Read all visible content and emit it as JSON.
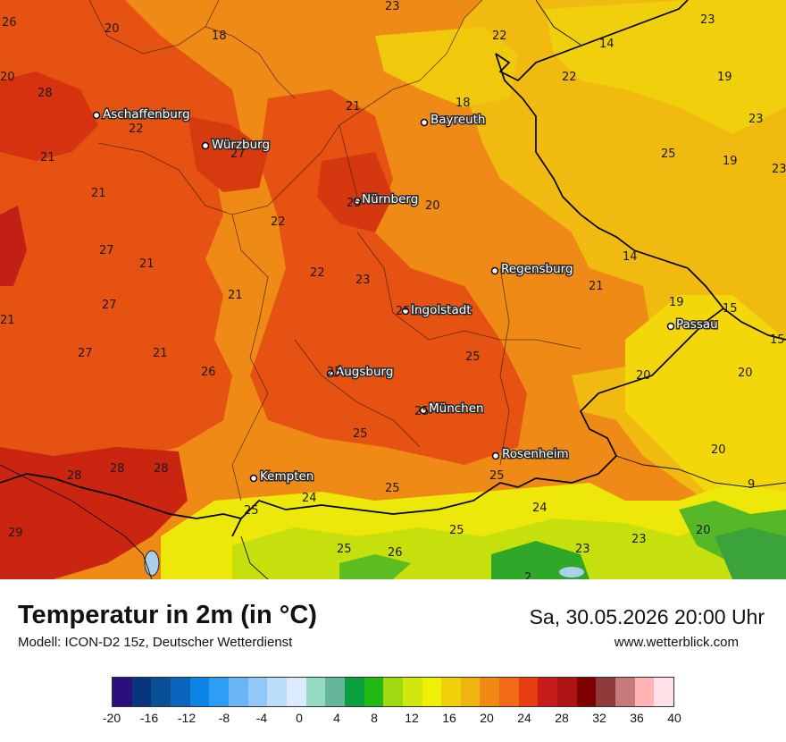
{
  "header": {
    "title": "Temperatur in 2m (in °C)",
    "model": "Modell: ICON-D2 15z, Deutscher Wetterdienst",
    "datetime": "Sa, 30.05.2026 20:00 Uhr",
    "website": "www.wetterblick.com"
  },
  "cities": [
    {
      "name": "Aschaffenburg",
      "marker": "dot"
    },
    {
      "name": "Würzburg",
      "marker": "dot"
    },
    {
      "name": "Bayreuth",
      "marker": "dot"
    },
    {
      "name": "Nürnberg",
      "marker": "dot"
    },
    {
      "name": "Regensburg",
      "marker": "dot"
    },
    {
      "name": "Ingolstadt",
      "marker": "dot"
    },
    {
      "name": "Passau",
      "marker": "dot"
    },
    {
      "name": "Augsburg",
      "marker": "dot"
    },
    {
      "name": "München",
      "marker": "dot"
    },
    {
      "name": "Rosenheim",
      "marker": "dot"
    },
    {
      "name": "Kempten",
      "marker": "dot"
    }
  ],
  "value_labels": [
    "26",
    "20",
    "18",
    "23",
    "22",
    "14",
    "23",
    "20",
    "28",
    "22",
    "22",
    "19",
    "21",
    "18",
    "23",
    "19",
    "21",
    "27",
    "25",
    "23",
    "21",
    "25",
    "20",
    "22",
    "27",
    "21",
    "22",
    "23",
    "14",
    "21",
    "21",
    "27",
    "25",
    "19",
    "15",
    "21",
    "15",
    "27",
    "21",
    "25",
    "26",
    "25",
    "20",
    "20",
    "25",
    "25",
    "25",
    "20",
    "28",
    "28",
    "28",
    "25",
    "9",
    "24",
    "25",
    "24",
    "25",
    "20",
    "29",
    "25",
    "26",
    "23",
    "23",
    "2"
  ],
  "legend": {
    "colors": [
      "#2a0f7e",
      "#07367f",
      "#0b4f97",
      "#0a66bc",
      "#0b84e6",
      "#2e9ef5",
      "#6bb5f5",
      "#91c8f8",
      "#bcdcfb",
      "#dbeafd",
      "#95dbc2",
      "#66b799",
      "#0b9f3d",
      "#21ba14",
      "#9fd910",
      "#d0e80c",
      "#eef007",
      "#f0d00b",
      "#f0b40e",
      "#f08a13",
      "#f06a17",
      "#e83d10",
      "#c81b1b",
      "#ae1414",
      "#7f0000",
      "#8f3a3a",
      "#c57a7a",
      "#ffb3b3",
      "#ffe0e6"
    ],
    "ticks": [
      "-20",
      "-16",
      "-12",
      "-8",
      "-4",
      "0",
      "4",
      "8",
      "12",
      "16",
      "20",
      "24",
      "28",
      "32",
      "36",
      "40"
    ]
  }
}
